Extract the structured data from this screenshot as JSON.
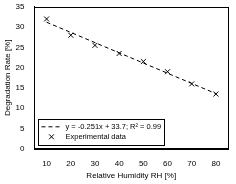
{
  "chart_data": {
    "type": "scatter",
    "x_label": "Relative Humidity RH [%]",
    "y_label": "Degradation Rate [%]",
    "xlim": [
      5,
      85
    ],
    "xticks": [
      10,
      20,
      30,
      40,
      50,
      60,
      70,
      80
    ],
    "ylim": [
      0,
      35
    ],
    "yticks": [
      0,
      5,
      10,
      15,
      20,
      25,
      30,
      35
    ],
    "grid": false,
    "legend": "lower left",
    "series": [
      {
        "name": "y = -0.251x + 33.7; R² = 0.99",
        "type": "line",
        "line_style": "dashed",
        "color": "#000000",
        "x": [
          10,
          80
        ],
        "values": [
          31.2,
          13.6
        ]
      },
      {
        "name": "Experimental data",
        "type": "scatter",
        "marker": "x",
        "color": "#000000",
        "x": [
          10,
          20,
          30,
          40,
          50,
          60,
          70,
          80
        ],
        "values": [
          32,
          28,
          25.5,
          23.5,
          21.5,
          19,
          16,
          13.5
        ]
      }
    ]
  }
}
